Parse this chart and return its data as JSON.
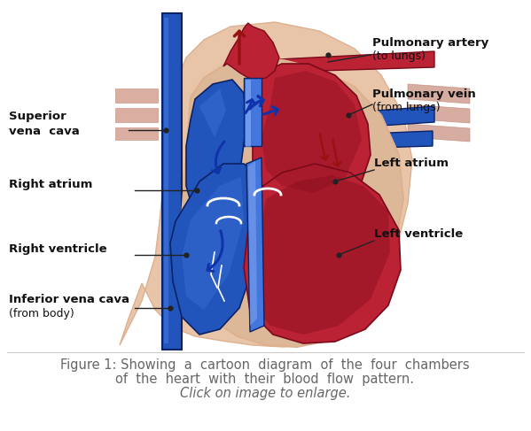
{
  "bg_color": "#ffffff",
  "fig_width": 5.99,
  "fig_height": 4.87,
  "caption_line1": "Figure 1: Showing  a  cartoon  diagram  of  the  four  chambers",
  "caption_line2": "of  the  heart  with  their  blood  flow  pattern.",
  "caption_line3": "Click on image to enlarge.",
  "caption_color": "#666666",
  "caption_fontsize": 10.5,
  "label_fontsize": 9.5,
  "label_color": "#111111",
  "blue_fill": "#2255bb",
  "blue_light": "#4477dd",
  "blue_dark": "#0a2266",
  "red_fill": "#bb2233",
  "red_light": "#cc4455",
  "red_dark": "#7a0a1a",
  "skin_outer": "#e8c4a8",
  "skin_mid": "#ddb090",
  "skin_inner": "#c89878",
  "peri_color": "#ddb898",
  "arrow_blue": "#1133aa",
  "arrow_red": "#991111",
  "dot_color": "#222222"
}
